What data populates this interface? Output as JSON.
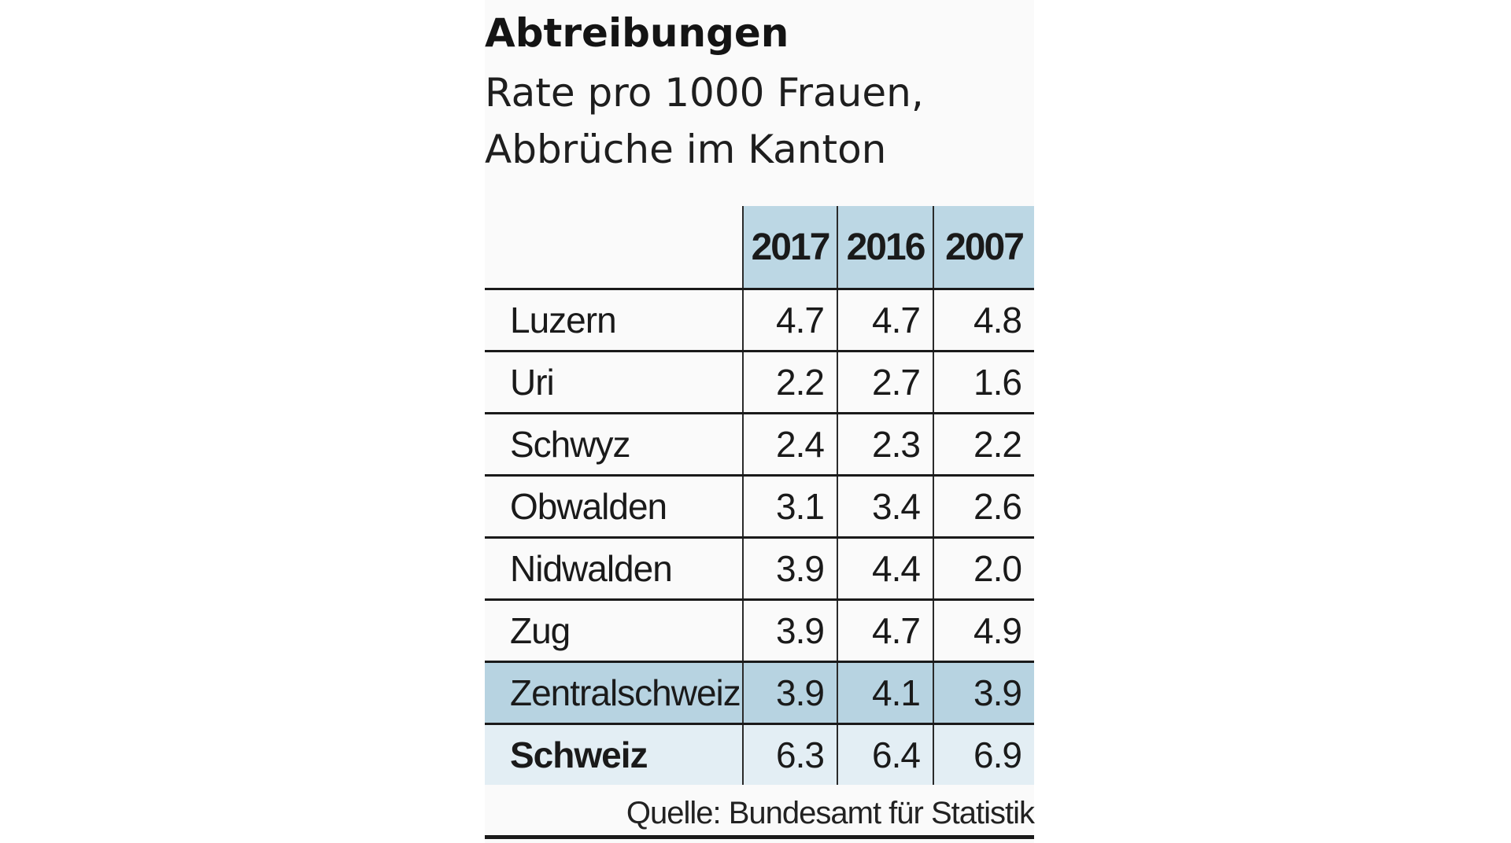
{
  "chart_data": {
    "type": "table",
    "title": "Abtreibungen",
    "subtitle_lines": [
      "Rate pro 1000 Frauen,",
      "Abbrüche im Kanton"
    ],
    "columns": [
      "2017",
      "2016",
      "2007"
    ],
    "rows": [
      {
        "name": "Luzern",
        "values": [
          "4.7",
          "4.7",
          "4.8"
        ]
      },
      {
        "name": "Uri",
        "values": [
          "2.2",
          "2.7",
          "1.6"
        ]
      },
      {
        "name": "Schwyz",
        "values": [
          "2.4",
          "2.3",
          "2.2"
        ]
      },
      {
        "name": "Obwalden",
        "values": [
          "3.1",
          "3.4",
          "2.6"
        ]
      },
      {
        "name": "Nidwalden",
        "values": [
          "3.9",
          "4.4",
          "2.0"
        ]
      },
      {
        "name": "Zug",
        "values": [
          "3.9",
          "4.7",
          "4.9"
        ]
      },
      {
        "name": "Zentralschweiz",
        "values": [
          "3.9",
          "4.1",
          "3.9"
        ],
        "highlight": "region"
      },
      {
        "name": "Schweiz",
        "values": [
          "6.3",
          "6.4",
          "6.9"
        ],
        "highlight": "national"
      }
    ],
    "source": "Quelle: Bundesamt für Statistik"
  },
  "colors": {
    "header_background": "#bcd7e4",
    "region_row_background": "#b7d3e1",
    "national_row_background": "#e3eef4",
    "text": "#1a1a1a"
  }
}
